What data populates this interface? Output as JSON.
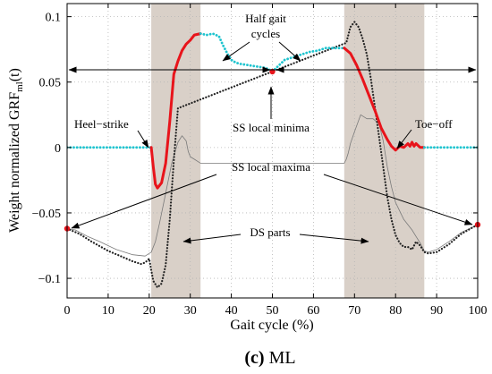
{
  "chart_data": {
    "type": "line",
    "title": "",
    "xlabel": "Gait cycle (%)",
    "ylabel_main": "Weight normalized GRF",
    "ylabel_sub": "ml",
    "ylabel_tail": "(t)",
    "xlim": [
      0,
      100
    ],
    "ylim": [
      -0.115,
      0.11
    ],
    "xticks": [
      0,
      10,
      20,
      30,
      40,
      50,
      60,
      70,
      80,
      90,
      100
    ],
    "yticks": [
      -0.1,
      -0.05,
      0,
      0.05,
      0.1
    ],
    "ytick_labels": [
      "−0.1",
      "−0.05",
      "0",
      "0.05",
      "0.1"
    ],
    "grid": true,
    "shaded_regions": [
      [
        20.5,
        32.5
      ],
      [
        67.5,
        87
      ]
    ],
    "series": [
      {
        "style": "thin",
        "color": "#7a7a7a",
        "x": [
          0,
          2,
          5,
          8,
          12,
          16,
          19,
          20.5,
          21.5,
          22.5,
          24,
          25.5,
          27,
          28,
          29,
          29.5,
          30,
          31,
          32.5,
          67.5,
          68,
          68.5,
          69,
          70,
          71.5,
          73,
          74.5,
          76,
          77,
          78,
          79,
          80,
          82,
          84,
          85,
          86,
          87,
          88,
          90,
          93,
          96,
          100
        ],
        "y": [
          -0.062,
          -0.063,
          -0.068,
          -0.072,
          -0.078,
          -0.082,
          -0.083,
          -0.08,
          -0.072,
          -0.058,
          -0.035,
          -0.012,
          0.004,
          0.009,
          0.005,
          -0.003,
          -0.007,
          -0.009,
          -0.012,
          -0.012,
          -0.009,
          -0.004,
          0.003,
          0.012,
          0.025,
          0.022,
          0.022,
          0.018,
          0.005,
          -0.015,
          -0.03,
          -0.042,
          -0.055,
          -0.063,
          -0.068,
          -0.073,
          -0.079,
          -0.08,
          -0.078,
          -0.072,
          -0.065,
          -0.059
        ]
      },
      {
        "style": "dotted",
        "color": "#222222",
        "x": [
          0,
          3,
          6,
          10,
          13,
          16,
          18,
          19,
          20,
          20.5,
          21,
          22,
          23,
          24,
          25,
          26,
          27,
          68,
          69,
          70,
          71,
          72,
          73,
          74,
          75,
          76,
          77,
          78,
          79,
          80,
          81,
          82,
          83,
          84,
          85,
          86,
          87,
          88,
          90,
          93,
          96,
          100
        ],
        "y": [
          -0.062,
          -0.066,
          -0.072,
          -0.079,
          -0.083,
          -0.087,
          -0.089,
          -0.088,
          -0.085,
          -0.094,
          -0.102,
          -0.107,
          -0.104,
          -0.09,
          -0.055,
          -0.01,
          0.03,
          0.08,
          0.092,
          0.096,
          0.092,
          0.083,
          0.071,
          0.052,
          0.03,
          0.008,
          -0.015,
          -0.038,
          -0.055,
          -0.067,
          -0.073,
          -0.076,
          -0.076,
          -0.078,
          -0.072,
          -0.075,
          -0.08,
          -0.081,
          -0.08,
          -0.074,
          -0.066,
          -0.059
        ]
      },
      {
        "style": "cyan-dotted",
        "color": "#1fc4cf",
        "x": [
          0,
          5,
          10,
          15,
          20,
          20.5
        ],
        "y": [
          0,
          0,
          0,
          0,
          0,
          0
        ]
      },
      {
        "style": "red",
        "color": "#e8141b",
        "x": [
          20.5,
          21,
          21.5,
          22,
          23,
          24,
          25,
          26,
          27,
          28,
          29,
          30,
          31,
          32.5
        ],
        "y": [
          0.0,
          -0.015,
          -0.028,
          -0.031,
          -0.027,
          -0.012,
          0.02,
          0.056,
          0.066,
          0.074,
          0.079,
          0.082,
          0.086,
          0.087
        ]
      },
      {
        "style": "cyan-dotted",
        "color": "#1fc4cf",
        "x": [
          32.5,
          34,
          35.5,
          37,
          38,
          39,
          40,
          41,
          42,
          44,
          46,
          48,
          49,
          50,
          51,
          52,
          53,
          55,
          57,
          59,
          61,
          63,
          65,
          67.5
        ],
        "y": [
          0.087,
          0.086,
          0.087,
          0.085,
          0.078,
          0.072,
          0.067,
          0.065,
          0.064,
          0.063,
          0.062,
          0.061,
          0.06,
          0.058,
          0.061,
          0.064,
          0.067,
          0.069,
          0.071,
          0.073,
          0.074,
          0.076,
          0.076,
          0.076
        ]
      },
      {
        "style": "red",
        "color": "#e8141b",
        "x": [
          67.5,
          69,
          70.5,
          72,
          73.5,
          75,
          76.5,
          78,
          79,
          80,
          81,
          82,
          83,
          83.5,
          84,
          84.5,
          85,
          86,
          87
        ],
        "y": [
          0.076,
          0.072,
          0.063,
          0.052,
          0.04,
          0.028,
          0.015,
          0.006,
          0.001,
          -0.002,
          0.001,
          0.0,
          0.003,
          0.001,
          0.004,
          0.001,
          0.003,
          0.0,
          0.0
        ]
      },
      {
        "style": "cyan-dotted",
        "color": "#1fc4cf",
        "x": [
          87,
          90,
          95,
          100
        ],
        "y": [
          0,
          0,
          0,
          0
        ]
      }
    ],
    "markers": [
      {
        "x": 0,
        "y": -0.062
      },
      {
        "x": 50,
        "y": 0.058
      },
      {
        "x": 100,
        "y": -0.059
      }
    ],
    "half_cycle_arrow_y": 0.067,
    "annotations": {
      "half_gait_line1": "Half gait",
      "half_gait_line2": "cycles",
      "heel_strike": "Heel−strike",
      "toe_off": "Toe−off",
      "ss_minima": "SS local minima",
      "ss_maxima": "SS local maxima",
      "ds_parts": "DS parts"
    }
  },
  "caption": {
    "letter": "(c)",
    "text": "ML"
  }
}
